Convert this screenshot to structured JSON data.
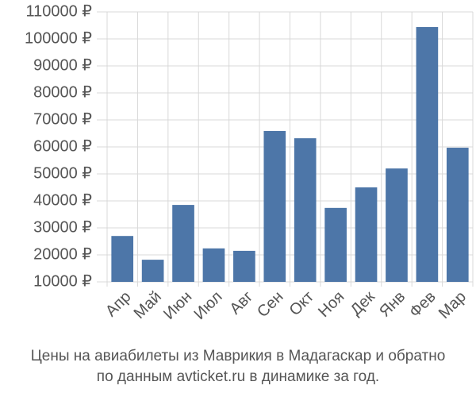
{
  "chart_data": {
    "type": "bar",
    "title": [
      "Цены на авиабилеты из Маврикия в Мадагаскар и обратно",
      "по данным avticket.ru в динамике за год."
    ],
    "categories": [
      "Апр",
      "Май",
      "Июн",
      "Июл",
      "Авг",
      "Сен",
      "Окт",
      "Ноя",
      "Дек",
      "Янв",
      "Фев",
      "Мар"
    ],
    "values": [
      27000,
      18200,
      38500,
      22400,
      21500,
      65900,
      63200,
      37400,
      45000,
      52000,
      104400,
      59700
    ],
    "color": "#4d76a8",
    "ylim": [
      10000,
      110000
    ],
    "yticks": [
      {
        "value": 10000,
        "label": "10000 ₽"
      },
      {
        "value": 20000,
        "label": "20000 ₽"
      },
      {
        "value": 30000,
        "label": "30000 ₽"
      },
      {
        "value": 40000,
        "label": "40000 ₽"
      },
      {
        "value": 50000,
        "label": "50000 ₽"
      },
      {
        "value": 60000,
        "label": "60000 ₽"
      },
      {
        "value": 70000,
        "label": "70000 ₽"
      },
      {
        "value": 80000,
        "label": "80000 ₽"
      },
      {
        "value": 90000,
        "label": "90000 ₽"
      },
      {
        "value": 100000,
        "label": "100000 ₽"
      },
      {
        "value": 110000,
        "label": "110000 ₽"
      }
    ],
    "grid": true
  }
}
